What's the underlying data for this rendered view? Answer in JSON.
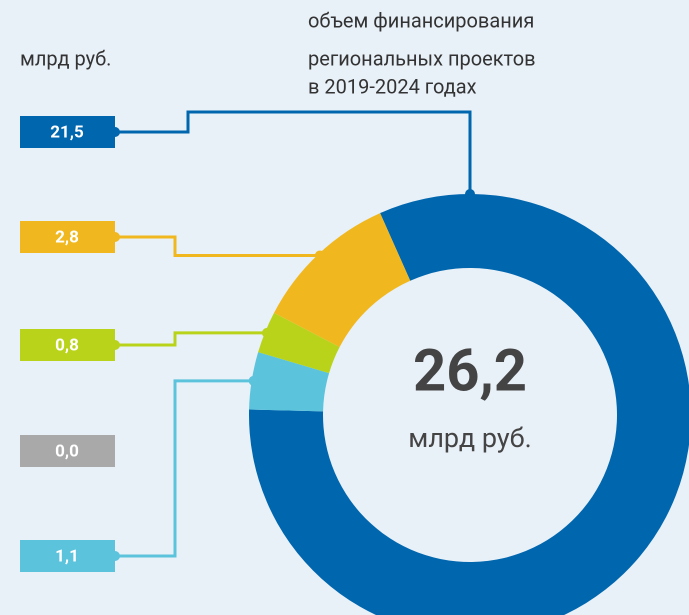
{
  "chart_data": {
    "type": "pie",
    "title": [
      "объем финансирования",
      "региональных проектов",
      "в 2019-2024 годах"
    ],
    "unit": "млрд руб.",
    "total": 26.2,
    "total_label": "26,2",
    "values": [
      21.5,
      1.1,
      0.0,
      0.8,
      2.8
    ],
    "value_labels": [
      "21,5",
      "1,1",
      "0,0",
      "0,8",
      "2,8"
    ],
    "colors": [
      "#0066ae",
      "#5bc3dc",
      "#a9a9a9",
      "#b9d31b",
      "#f0b81e"
    ]
  }
}
